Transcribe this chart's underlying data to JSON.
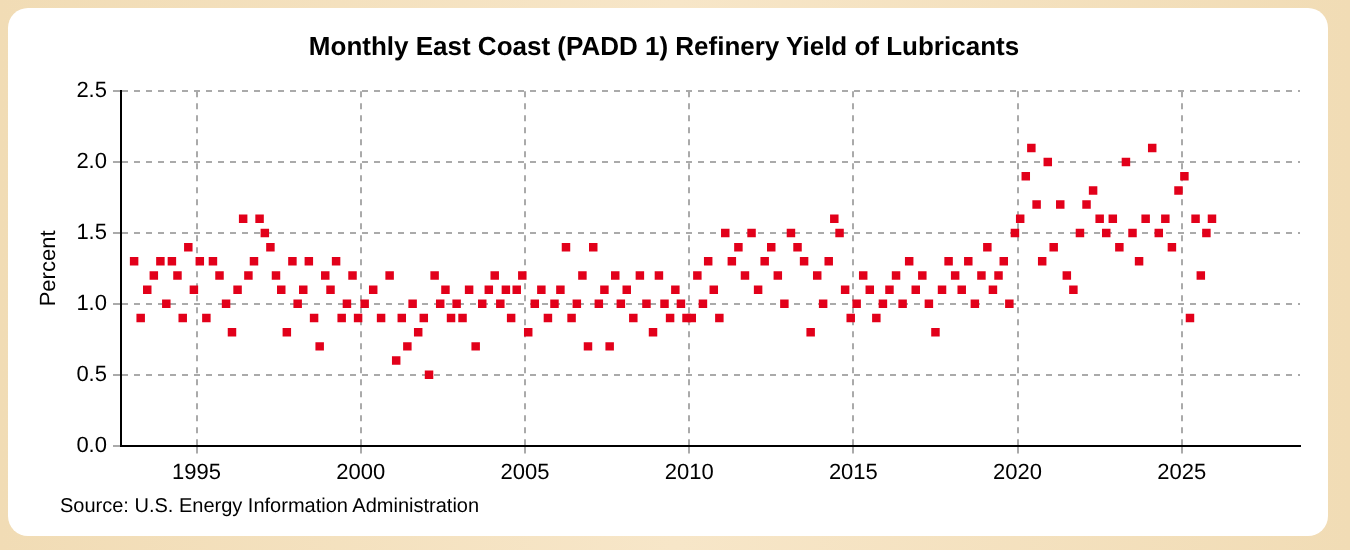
{
  "chart_data": {
    "type": "scatter",
    "title": "Monthly East Coast (PADD 1) Refinery Yield of Lubricants",
    "ylabel": "Percent",
    "annotations": [
      "Source: U.S. Energy Information Administration"
    ],
    "xlim": [
      1992.7,
      2028.6
    ],
    "xticks": [
      1995,
      2000,
      2005,
      2010,
      2015,
      2020,
      2025
    ],
    "ylim": [
      0,
      2.5
    ],
    "yticks": [
      {
        "value": 0,
        "label": "0.0"
      },
      0.5,
      {
        "value": 1,
        "label": "1.0"
      },
      1.5,
      {
        "value": 2,
        "label": "2.0"
      },
      2.5
    ],
    "grid": true,
    "marker": "square",
    "series": [
      {
        "color": "#e2001a",
        "x": [
          1993.1,
          1993.3,
          1993.5,
          1993.7,
          1993.9,
          1994.08,
          1994.25,
          1994.42,
          1994.58,
          1994.75,
          1994.92,
          1995.1,
          1995.3,
          1995.5,
          1995.7,
          1995.9,
          1996.08,
          1996.25,
          1996.42,
          1996.58,
          1996.75,
          1996.92,
          1997.08,
          1997.25,
          1997.42,
          1997.58,
          1997.75,
          1997.92,
          1998.08,
          1998.25,
          1998.42,
          1998.58,
          1998.75,
          1998.92,
          1999.08,
          1999.25,
          1999.42,
          1999.58,
          1999.75,
          1999.92,
          2000.12,
          2000.38,
          2000.62,
          2000.88,
          2001.08,
          2001.25,
          2001.42,
          2001.58,
          2001.75,
          2001.92,
          2002.08,
          2002.25,
          2002.42,
          2002.58,
          2002.75,
          2002.92,
          2003.1,
          2003.3,
          2003.5,
          2003.7,
          2003.9,
          2004.08,
          2004.25,
          2004.42,
          2004.58,
          2004.75,
          2004.92,
          2005.1,
          2005.3,
          2005.5,
          2005.7,
          2005.9,
          2006.08,
          2006.25,
          2006.42,
          2006.58,
          2006.75,
          2006.92,
          2007.08,
          2007.25,
          2007.42,
          2007.58,
          2007.75,
          2007.92,
          2008.1,
          2008.3,
          2008.5,
          2008.7,
          2008.9,
          2009.08,
          2009.25,
          2009.42,
          2009.58,
          2009.75,
          2009.92,
          2010.08,
          2010.25,
          2010.42,
          2010.58,
          2010.75,
          2010.92,
          2011.1,
          2011.3,
          2011.5,
          2011.7,
          2011.9,
          2012.1,
          2012.3,
          2012.5,
          2012.7,
          2012.9,
          2013.1,
          2013.3,
          2013.5,
          2013.7,
          2013.9,
          2014.08,
          2014.25,
          2014.42,
          2014.58,
          2014.75,
          2014.92,
          2015.1,
          2015.3,
          2015.5,
          2015.7,
          2015.9,
          2016.1,
          2016.3,
          2016.5,
          2016.7,
          2016.9,
          2017.1,
          2017.3,
          2017.5,
          2017.7,
          2017.9,
          2018.1,
          2018.3,
          2018.5,
          2018.7,
          2018.9,
          2019.08,
          2019.25,
          2019.42,
          2019.58,
          2019.75,
          2019.92,
          2020.08,
          2020.25,
          2020.42,
          2020.58,
          2020.75,
          2020.92,
          2021.1,
          2021.3,
          2021.5,
          2021.7,
          2021.9,
          2022.1,
          2022.3,
          2022.5,
          2022.7,
          2022.9,
          2023.1,
          2023.3,
          2023.5,
          2023.7,
          2023.9,
          2024.1,
          2024.3,
          2024.5,
          2024.7,
          2024.9,
          2025.08,
          2025.25,
          2025.42,
          2025.58,
          2025.75,
          2025.92
        ],
        "values": [
          1.3,
          0.9,
          1.1,
          1.2,
          1.3,
          1.0,
          1.3,
          1.2,
          0.9,
          1.4,
          1.1,
          1.3,
          0.9,
          1.3,
          1.2,
          1.0,
          0.8,
          1.1,
          1.6,
          1.2,
          1.3,
          1.6,
          1.5,
          1.4,
          1.2,
          1.1,
          0.8,
          1.3,
          1.0,
          1.1,
          1.3,
          0.9,
          0.7,
          1.2,
          1.1,
          1.3,
          0.9,
          1.0,
          1.2,
          0.9,
          1.0,
          1.1,
          0.9,
          1.2,
          0.6,
          0.9,
          0.7,
          1.0,
          0.8,
          0.9,
          0.5,
          1.2,
          1.0,
          1.1,
          0.9,
          1.0,
          0.9,
          1.1,
          0.7,
          1.0,
          1.1,
          1.2,
          1.0,
          1.1,
          0.9,
          1.1,
          1.2,
          0.8,
          1.0,
          1.1,
          0.9,
          1.0,
          1.1,
          1.4,
          0.9,
          1.0,
          1.2,
          0.7,
          1.4,
          1.0,
          1.1,
          0.7,
          1.2,
          1.0,
          1.1,
          0.9,
          1.2,
          1.0,
          0.8,
          1.2,
          1.0,
          0.9,
          1.1,
          1.0,
          0.9,
          0.9,
          1.2,
          1.0,
          1.3,
          1.1,
          0.9,
          1.5,
          1.3,
          1.4,
          1.2,
          1.5,
          1.1,
          1.3,
          1.4,
          1.2,
          1.0,
          1.5,
          1.4,
          1.3,
          0.8,
          1.2,
          1.0,
          1.3,
          1.6,
          1.5,
          1.1,
          0.9,
          1.0,
          1.2,
          1.1,
          0.9,
          1.0,
          1.1,
          1.2,
          1.0,
          1.3,
          1.1,
          1.2,
          1.0,
          0.8,
          1.1,
          1.3,
          1.2,
          1.1,
          1.3,
          1.0,
          1.2,
          1.4,
          1.1,
          1.2,
          1.3,
          1.0,
          1.5,
          1.6,
          1.9,
          2.1,
          1.7,
          1.3,
          2.0,
          1.4,
          1.7,
          1.2,
          1.1,
          1.5,
          1.7,
          1.8,
          1.6,
          1.5,
          1.6,
          1.4,
          2.0,
          1.5,
          1.3,
          1.6,
          2.1,
          1.5,
          1.6,
          1.4,
          1.8,
          1.9,
          0.9,
          1.6,
          1.2,
          1.5,
          1.6
        ]
      }
    ]
  }
}
